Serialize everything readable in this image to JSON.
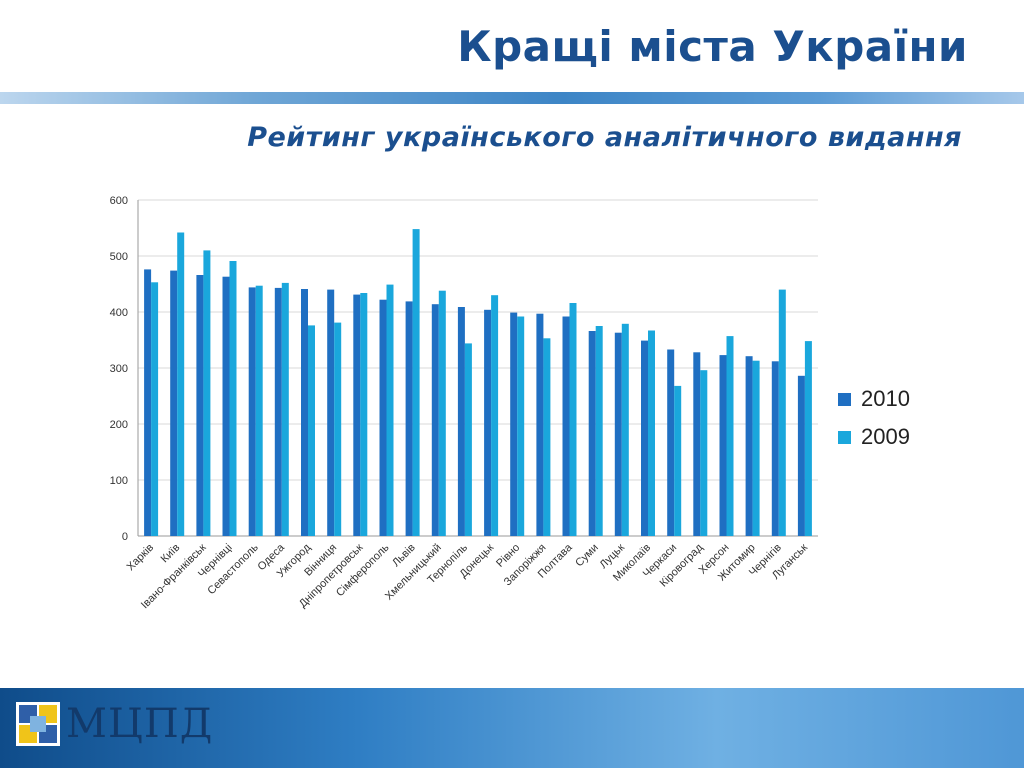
{
  "slide": {
    "title": "Кращі міста України",
    "subtitle": "Рейтинг українського аналітичного видання",
    "logo_text": "МЦПД"
  },
  "colors": {
    "title": "#1b4f8f",
    "series_2010": "#1f6fc2",
    "series_2009": "#1aa7dc",
    "grid": "#d9d9d9"
  },
  "chart_data": {
    "type": "bar",
    "title": "",
    "xlabel": "",
    "ylabel": "",
    "ylim": [
      0,
      600
    ],
    "yticks": [
      0,
      100,
      200,
      300,
      400,
      500,
      600
    ],
    "grid": true,
    "legend_position": "right",
    "categories": [
      "Харків",
      "Київ",
      "Івано-Франківськ",
      "Чернівці",
      "Севастополь",
      "Одеса",
      "Ужгород",
      "Вінниця",
      "Дніпропетровськ",
      "Сімферополь",
      "Львів",
      "Хмельницький",
      "Тернопіль",
      "Донецьк",
      "Рівно",
      "Запоріжжя",
      "Полтава",
      "Суми",
      "Луцьк",
      "Миколаїв",
      "Черкаси",
      "Кіровоград",
      "Херсон",
      "Житомир",
      "Чернігів",
      "Луганськ"
    ],
    "series": [
      {
        "name": "2010",
        "values": [
          476,
          474,
          466,
          463,
          444,
          443,
          441,
          440,
          431,
          422,
          419,
          414,
          409,
          404,
          399,
          397,
          392,
          366,
          363,
          349,
          333,
          328,
          323,
          321,
          312,
          286
        ]
      },
      {
        "name": "2009",
        "values": [
          453,
          542,
          510,
          491,
          447,
          452,
          376,
          381,
          434,
          449,
          548,
          438,
          344,
          430,
          392,
          353,
          416,
          375,
          379,
          367,
          268,
          296,
          357,
          313,
          440,
          348
        ]
      }
    ]
  }
}
